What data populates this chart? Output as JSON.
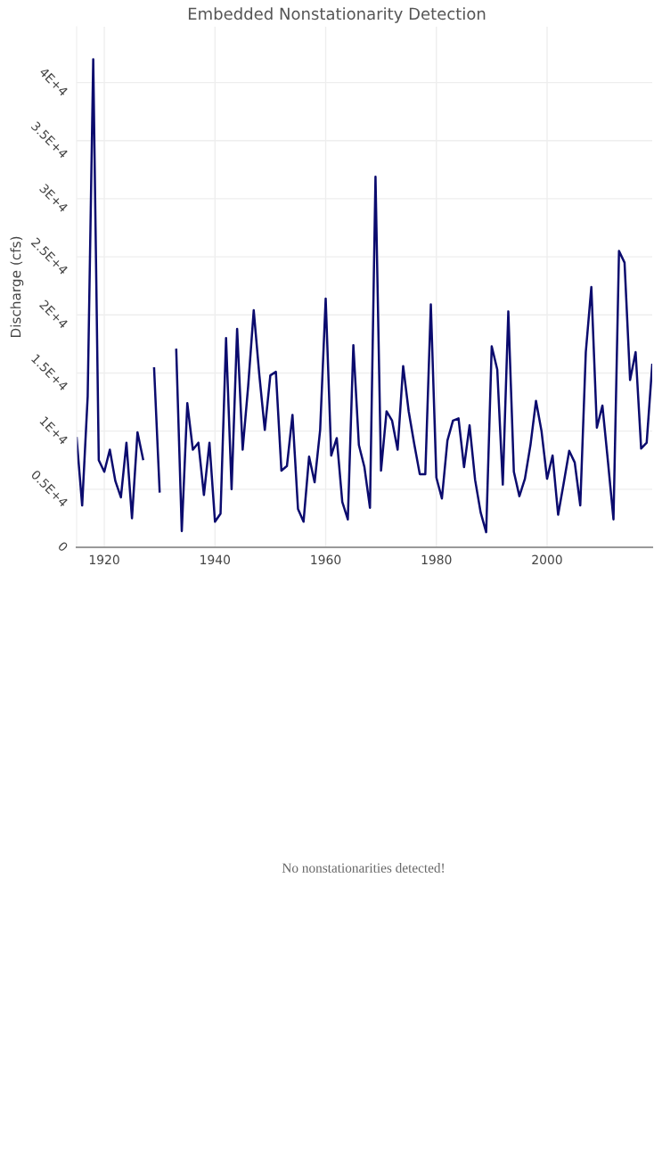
{
  "chart_data": {
    "type": "line",
    "title": "Embedded Nonstationarity Detection",
    "ylabel": "Discharge (cfs)",
    "x": [
      1915,
      1916,
      1917,
      1918,
      1919,
      1920,
      1921,
      1922,
      1923,
      1924,
      1925,
      1926,
      1927,
      1928,
      1929,
      1930,
      1931,
      1932,
      1933,
      1934,
      1935,
      1936,
      1937,
      1938,
      1939,
      1940,
      1941,
      1942,
      1943,
      1944,
      1945,
      1946,
      1947,
      1948,
      1949,
      1950,
      1951,
      1952,
      1953,
      1954,
      1955,
      1956,
      1957,
      1958,
      1959,
      1960,
      1961,
      1962,
      1963,
      1964,
      1965,
      1966,
      1967,
      1968,
      1969,
      1970,
      1971,
      1972,
      1973,
      1974,
      1975,
      1976,
      1977,
      1978,
      1979,
      1980,
      1981,
      1982,
      1983,
      1984,
      1985,
      1986,
      1987,
      1988,
      1989,
      1990,
      1991,
      1992,
      1993,
      1994,
      1995,
      1996,
      1997,
      1998,
      1999,
      2000,
      2001,
      2002,
      2003,
      2004,
      2005,
      2006,
      2007,
      2008,
      2009,
      2010,
      2011,
      2012,
      2013,
      2014,
      2015,
      2016,
      2017,
      2018,
      2019
    ],
    "series": [
      {
        "color": "#0b0b6e",
        "values": [
          9400,
          3600,
          13000,
          42000,
          7500,
          6500,
          8400,
          5700,
          4300,
          9000,
          2500,
          9900,
          7600,
          null,
          15400,
          4800,
          null,
          null,
          17000,
          1400,
          12400,
          8400,
          9000,
          4500,
          9000,
          2200,
          2900,
          18000,
          5000,
          18800,
          8400,
          13900,
          20400,
          14900,
          10100,
          14800,
          15100,
          6600,
          7000,
          11400,
          3300,
          2200,
          7800,
          5600,
          10100,
          21400,
          7900,
          9400,
          3900,
          2400,
          17400,
          8800,
          6900,
          3400,
          31900,
          6600,
          11700,
          10900,
          8400,
          15600,
          11700,
          8900,
          6300,
          6300,
          20900,
          6000,
          4200,
          9200,
          10900,
          11100,
          6900,
          10500,
          5800,
          3000,
          1300,
          17300,
          15300,
          5400,
          20300,
          6500,
          4400,
          5900,
          8800,
          12600,
          10000,
          5900,
          7900,
          2800,
          5500,
          8300,
          7300,
          3600,
          16800,
          22400,
          10300,
          12200,
          7400,
          2400,
          25500,
          24500,
          14400,
          16800,
          8500,
          9000,
          15700
        ]
      }
    ],
    "xlim": [
      1915,
      2019
    ],
    "xticks": [
      1920,
      1940,
      1960,
      1980,
      2000
    ],
    "ylim": [
      0,
      44800
    ],
    "yticks": [
      0,
      {
        "value": 5000,
        "label": "0.5E+4"
      },
      {
        "value": 10000,
        "label": "1E+4"
      },
      {
        "value": 15000,
        "label": "1.5E+4"
      },
      {
        "value": 20000,
        "label": "2E+4"
      },
      {
        "value": 25000,
        "label": "2.5E+4"
      },
      {
        "value": 30000,
        "label": "3E+4"
      },
      {
        "value": 35000,
        "label": "3.5E+4"
      },
      {
        "value": 40000,
        "label": "4E+4"
      }
    ],
    "grid": true,
    "legend": false,
    "marker": "none",
    "line_style": "solid",
    "annotations": [
      "No nonstationarities detected!"
    ]
  }
}
